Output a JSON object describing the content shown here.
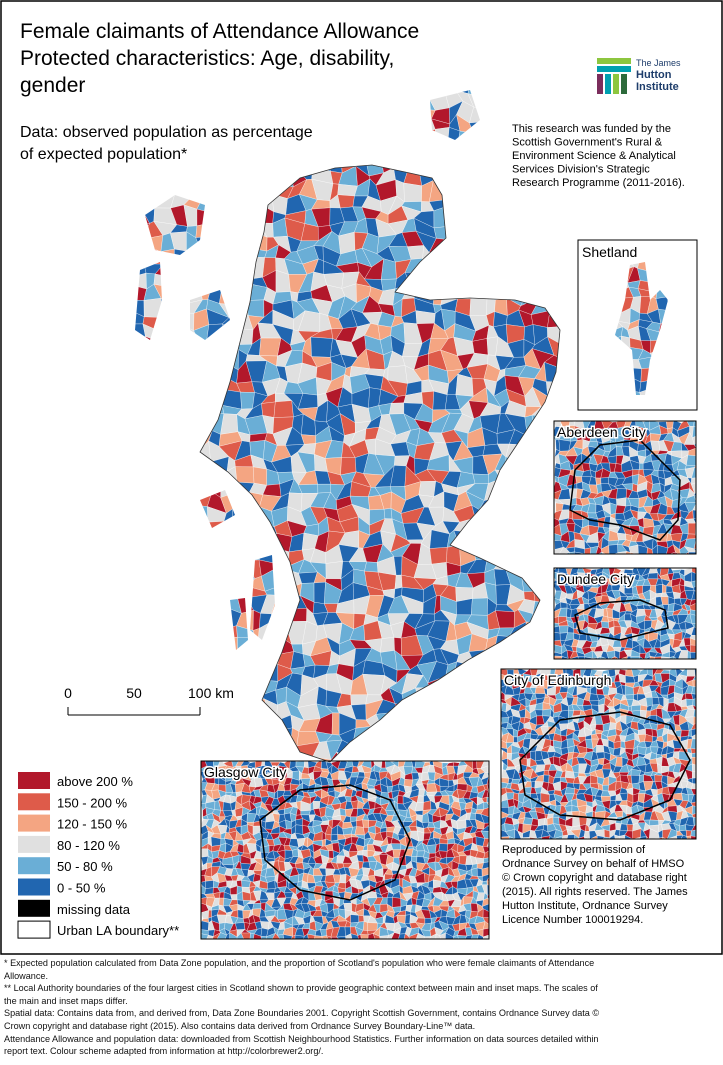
{
  "title": [
    "Female claimants of Attendance Allowance",
    "Protected characteristics: Age, disability,",
    "gender"
  ],
  "subtitle": [
    "Data: observed population as percentage",
    "of expected population*"
  ],
  "logo": [
    "The James",
    "Hutton",
    "Institute"
  ],
  "funding": [
    "This research was funded by the",
    "Scottish Government's Rural &",
    "Environment Science & Analytical",
    "Services Division's Strategic",
    "Research Programme (2011-2016)."
  ],
  "insets": [
    "Shetland",
    "Aberdeen City",
    "Dundee City",
    "City of Edinburgh",
    "Glasgow City"
  ],
  "scale_bar": [
    "0",
    "50",
    "100 km"
  ],
  "legend": [
    {
      "label": "above 200 %",
      "color": "#b2182b"
    },
    {
      "label": "150 - 200 %",
      "color": "#de5b4a"
    },
    {
      "label": "120 - 150 %",
      "color": "#f4a582"
    },
    {
      "label": "80 - 120 %",
      "color": "#e0e0e0"
    },
    {
      "label": "50 - 80 %",
      "color": "#6aaed6"
    },
    {
      "label": "0 - 50 %",
      "color": "#2166b0"
    },
    {
      "label": "missing data",
      "color": "#000000"
    },
    {
      "label": "Urban LA boundary**",
      "color": "#ffffff"
    }
  ],
  "copyright": [
    "Reproduced by permission of",
    "Ordnance Survey on behalf of HMSO",
    "© Crown copyright and database right",
    "(2015). All rights reserved. The James",
    "Hutton Institute, Ordnance Survey",
    "Licence Number 100019294."
  ],
  "footnotes": [
    "* Expected population calculated from Data Zone population, and the proportion of Scotland's population who were female claimants of  Attendance",
    "Allowance.",
    "** Local Authority boundaries of the four largest cities in Scotland shown to provide geographic context between main and inset maps. The scales of",
    "the main and inset maps differ.",
    "Spatial data: Contains data from, and derived from, Data Zone Boundaries 2001. Copyright Scottish Government, contains Ordnance Survey data ©",
    "Crown copyright and database right (2015). Also contains data derived from Ordnance Survey Boundary-Line™ data.",
    "Attendance Allowance and population data: downloaded from Scottish Neighbourhood Statistics. Further information on data sources detailed within",
    "report text. Colour scheme adapted from information at http://colorbrewer2.org/."
  ]
}
